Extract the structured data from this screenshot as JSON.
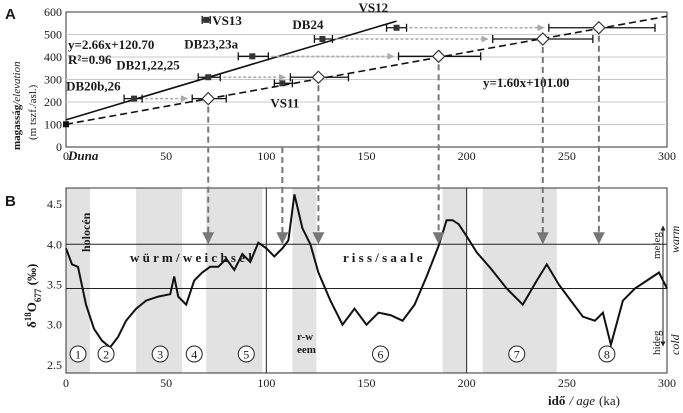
{
  "chart_data": [
    {
      "panel": "A",
      "type": "scatter",
      "title": "",
      "panel_label": "A",
      "ylabel_bold": "magasság",
      "ylabel_italic": "/elevation",
      "ylabel_unit": "(m tszf./asl.)",
      "xlim": [
        0,
        300
      ],
      "ylim": [
        0,
        600
      ],
      "xticks": [
        0,
        50,
        100,
        150,
        200,
        250,
        300
      ],
      "yticks": [
        0,
        100,
        200,
        300,
        400,
        500,
        600
      ],
      "lines": [
        {
          "equation": "y=2.66x+120.70",
          "r2": "R²=0.96",
          "slope": 2.66,
          "intercept": 120.7,
          "x_range": [
            0,
            165
          ],
          "style": "solid"
        },
        {
          "equation": "y=1.60x+101.00",
          "slope": 1.6,
          "intercept": 101.0,
          "x_range": [
            0,
            300
          ],
          "style": "dashed"
        }
      ],
      "baseline_point": {
        "label": "Duna",
        "x": 0,
        "y": 101
      },
      "points": [
        {
          "label": "DB20b,26",
          "x": 34,
          "y": 215,
          "err": [
            29,
            38
          ],
          "dx": 71,
          "derr": [
            63,
            80
          ]
        },
        {
          "label": "DB21,22,25",
          "x": 71,
          "y": 310,
          "err": [
            66,
            77
          ],
          "dx": 126,
          "derr": [
            112,
            141
          ]
        },
        {
          "label": "VS11",
          "x": 108,
          "y": 283,
          "err": [
            104,
            113
          ],
          "dx": null
        },
        {
          "label": "DB23,23a",
          "x": 93,
          "y": 403,
          "err": [
            86,
            101
          ],
          "dx": 186,
          "derr": [
            166,
            207
          ]
        },
        {
          "label": "DB24",
          "x": 128,
          "y": 480,
          "err": [
            124,
            133
          ],
          "dx": 238,
          "derr": [
            213,
            263
          ]
        },
        {
          "label": "VS12",
          "x": 165,
          "y": 530,
          "err": [
            160,
            170
          ],
          "dx": 266,
          "derr": [
            241,
            294
          ]
        },
        {
          "label": "VS13",
          "x": 70,
          "y": 565,
          "err": [
            68,
            72
          ],
          "dx": null
        }
      ]
    },
    {
      "panel": "B",
      "type": "line",
      "title": "",
      "panel_label": "B",
      "ylabel": "δ18O677 (‰)",
      "xlabel_bold": "idő",
      "xlabel_italic": "/ age",
      "xlabel_unit": "(ka)",
      "xlim": [
        0,
        300
      ],
      "ylim": [
        2.4,
        4.7
      ],
      "xticks": [
        0,
        50,
        100,
        150,
        200,
        250,
        300
      ],
      "yticks": [
        2.5,
        3.0,
        3.5,
        4.0,
        4.5
      ],
      "hlines": [
        3.45,
        4.0
      ],
      "vlines": [
        100,
        200
      ],
      "x": [
        0,
        3,
        6,
        10,
        14,
        18,
        22,
        26,
        30,
        35,
        40,
        46,
        52,
        54,
        56,
        60,
        64,
        68,
        72,
        76,
        80,
        84,
        88,
        92,
        96,
        100,
        104,
        108,
        111,
        114,
        118,
        122,
        126,
        132,
        138,
        144,
        150,
        156,
        162,
        168,
        174,
        180,
        186,
        190,
        193,
        196,
        200,
        205,
        212,
        220,
        228,
        235,
        240,
        246,
        252,
        258,
        264,
        268,
        272,
        278,
        284,
        290,
        296,
        300
      ],
      "values": [
        3.95,
        3.75,
        3.72,
        3.25,
        2.95,
        2.8,
        2.72,
        2.85,
        3.05,
        3.2,
        3.3,
        3.35,
        3.38,
        3.6,
        3.35,
        3.25,
        3.55,
        3.65,
        3.72,
        3.72,
        3.82,
        3.68,
        3.88,
        3.78,
        4.02,
        3.95,
        3.85,
        3.95,
        4.05,
        4.62,
        4.2,
        4.0,
        3.65,
        3.3,
        3.0,
        3.2,
        3.0,
        3.15,
        3.12,
        3.05,
        3.25,
        3.6,
        3.98,
        4.3,
        4.3,
        4.25,
        4.1,
        3.9,
        3.7,
        3.45,
        3.25,
        3.55,
        3.75,
        3.5,
        3.3,
        3.1,
        3.05,
        3.15,
        2.75,
        3.3,
        3.45,
        3.55,
        3.65,
        3.45
      ],
      "shaded": [
        [
          0,
          12
        ],
        [
          35,
          58
        ],
        [
          70,
          98
        ],
        [
          113,
          125
        ],
        [
          188,
          200
        ],
        [
          208,
          245
        ]
      ],
      "annotations": {
        "holocene": "holocén",
        "wurm": "w ü r m / w e i c h s e l",
        "riss": "r  i  s  s     /     s  a  a  l  e",
        "rw": "r-w",
        "eem": "eem",
        "warm_hu": "meleg",
        "warm_en": "warm",
        "cold_hu": "hideg",
        "cold_en": "cold"
      },
      "mis_stages": [
        {
          "label": "1",
          "x": 6
        },
        {
          "label": "2",
          "x": 20
        },
        {
          "label": "3",
          "x": 47
        },
        {
          "label": "4",
          "x": 64
        },
        {
          "label": "5",
          "x": 90
        },
        {
          "label": "6",
          "x": 157
        },
        {
          "label": "7",
          "x": 225
        },
        {
          "label": "8",
          "x": 270
        }
      ],
      "correlation_arrows": [
        71,
        108,
        126,
        186,
        238,
        266
      ]
    }
  ]
}
